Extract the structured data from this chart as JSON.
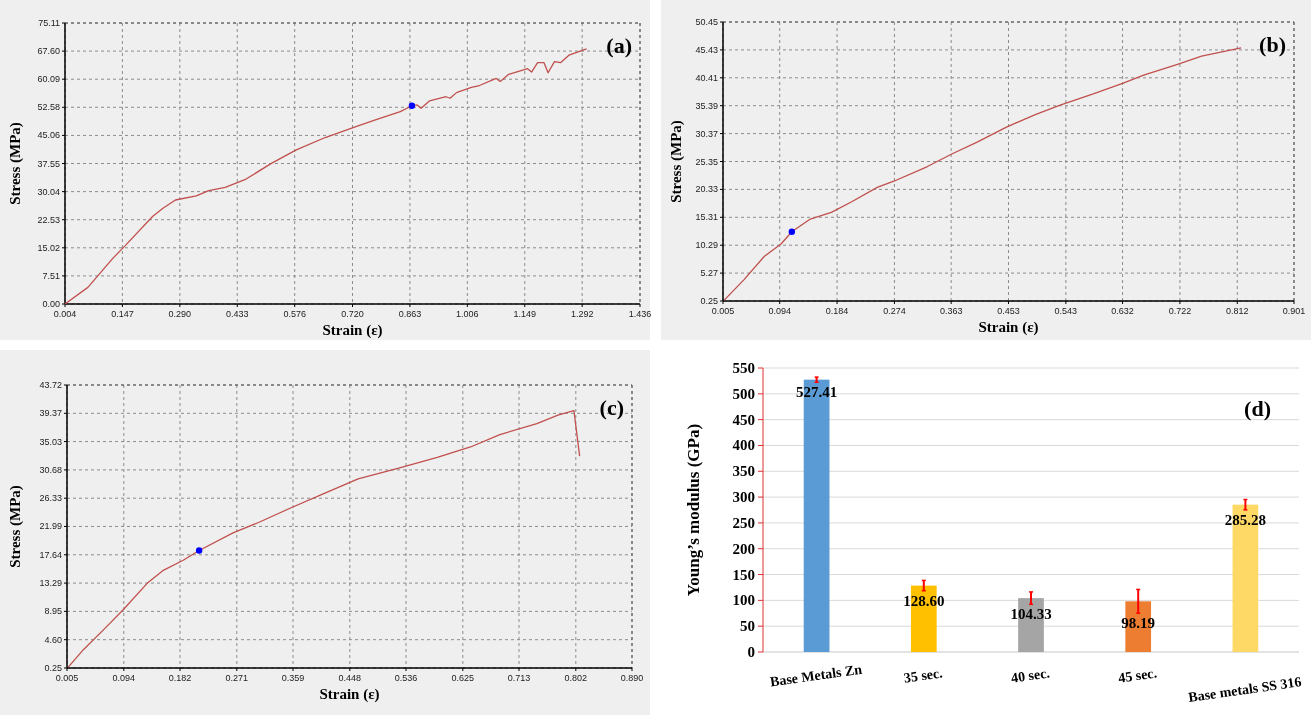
{
  "chart_data": [
    {
      "type": "line",
      "xlabel": "Strain (ε)",
      "ylabel": "Stress (MPa)",
      "annotations": [
        "(a)"
      ],
      "grid": true,
      "xlim": [
        0.004,
        1.436
      ],
      "ylim": [
        0,
        75.11
      ],
      "xticks": [
        0.004,
        0.147,
        {
          "value": 0.29,
          "label": "0.290"
        },
        0.433,
        0.576,
        {
          "value": 0.72,
          "label": "0.720"
        },
        0.863,
        1.006,
        1.149,
        1.292,
        1.436
      ],
      "yticks": [
        {
          "value": 0,
          "label": "0.00"
        },
        7.51,
        15.02,
        22.53,
        30.04,
        37.55,
        45.06,
        52.58,
        60.09,
        {
          "value": 67.6,
          "label": "67.60"
        },
        75.11
      ],
      "series": [
        {
          "type": "line",
          "color": "#c0504d",
          "x": [
            0.004,
            0.061,
            0.123,
            0.154,
            0.222,
            0.248,
            0.279,
            0.331,
            0.362,
            0.403,
            0.455,
            0.518,
            0.58,
            0.652,
            0.725,
            0.777,
            0.839,
            0.868,
            0.881,
            0.891,
            0.912,
            0.953,
            0.963,
            0.979,
            1.016,
            1.036,
            1.078,
            1.088,
            1.109,
            1.156,
            1.166,
            1.181,
            1.197,
            1.207,
            1.223,
            1.238,
            1.259,
            1.303
          ],
          "values": [
            0,
            4.45,
            12.2,
            15.6,
            23.4,
            25.6,
            27.8,
            28.9,
            30.3,
            31.2,
            33.4,
            37.6,
            41.2,
            44.5,
            47.3,
            49.2,
            51.4,
            53.0,
            53.2,
            52.3,
            54.3,
            55.4,
            55.0,
            56.5,
            57.9,
            58.4,
            60.3,
            59.5,
            61.4,
            62.9,
            62.0,
            64.5,
            64.5,
            61.8,
            64.8,
            64.5,
            66.5,
            68.2
          ]
        },
        {
          "type": "scatter",
          "color": "#0000ff",
          "marker": "circle",
          "x": [
            0.868
          ],
          "values": [
            53.0
          ]
        }
      ]
    },
    {
      "type": "line",
      "xlabel": "Strain (ε)",
      "ylabel": "Stress (MPa)",
      "annotations": [
        "(b)"
      ],
      "grid": true,
      "xlim": [
        0.005,
        0.901
      ],
      "ylim": [
        0.25,
        50.45
      ],
      "xticks": [
        0.005,
        0.094,
        0.184,
        0.274,
        0.363,
        0.453,
        0.543,
        0.632,
        0.722,
        0.812,
        0.901
      ],
      "yticks": [
        0.25,
        5.27,
        10.29,
        15.31,
        20.33,
        25.35,
        30.37,
        35.39,
        40.41,
        45.43,
        50.45
      ],
      "series": [
        {
          "type": "line",
          "color": "#c0504d",
          "x": [
            0.007,
            0.038,
            0.07,
            0.096,
            0.113,
            0.142,
            0.175,
            0.207,
            0.247,
            0.273,
            0.325,
            0.364,
            0.403,
            0.449,
            0.495,
            0.534,
            0.586,
            0.632,
            0.665,
            0.717,
            0.756,
            0.818
          ],
          "values": [
            0.4,
            4.1,
            8.3,
            10.5,
            12.7,
            15.0,
            16.2,
            18.1,
            20.7,
            21.8,
            24.4,
            26.7,
            28.8,
            31.5,
            33.8,
            35.5,
            37.5,
            39.4,
            40.9,
            42.8,
            44.3,
            45.8
          ]
        },
        {
          "type": "scatter",
          "color": "#0000ff",
          "marker": "circle",
          "x": [
            0.113
          ],
          "values": [
            12.7
          ]
        }
      ]
    },
    {
      "type": "line",
      "xlabel": "Strain (ε)",
      "ylabel": "Stress (MPa)",
      "annotations": [
        "(c)"
      ],
      "grid": true,
      "xlim": [
        0.005,
        0.89
      ],
      "ylim": [
        0.25,
        43.72
      ],
      "xticks": [
        0.005,
        0.094,
        0.182,
        0.271,
        0.359,
        0.448,
        0.536,
        0.625,
        0.713,
        0.802,
        {
          "value": 0.89,
          "label": "0.890"
        }
      ],
      "yticks": [
        0.25,
        {
          "value": 4.6,
          "label": "4.60"
        },
        8.95,
        13.29,
        17.64,
        21.99,
        26.33,
        30.68,
        35.03,
        39.37,
        43.72
      ],
      "series": [
        {
          "type": "line",
          "color": "#c0504d",
          "x": [
            0.007,
            0.031,
            0.064,
            0.093,
            0.132,
            0.155,
            0.187,
            0.212,
            0.265,
            0.305,
            0.357,
            0.409,
            0.461,
            0.526,
            0.585,
            0.637,
            0.683,
            0.741,
            0.774,
            0.799,
            0.808
          ],
          "values": [
            0.38,
            3.1,
            6.3,
            9.2,
            13.4,
            15.2,
            16.8,
            18.3,
            21.0,
            22.6,
            24.9,
            27.1,
            29.3,
            31.0,
            32.6,
            34.2,
            36.1,
            37.8,
            39.1,
            39.8,
            32.8
          ]
        },
        {
          "type": "scatter",
          "color": "#0000ff",
          "marker": "circle",
          "x": [
            0.212
          ],
          "values": [
            18.3
          ]
        }
      ]
    },
    {
      "type": "bar",
      "ylabel": "Young’s modulus (GPa)",
      "annotations": [
        "(d)"
      ],
      "grid": "y",
      "value_labels": [
        "527.41",
        "128.60",
        "104.33",
        "98.19",
        "285.28"
      ],
      "categories": [
        "Base Metals Zn",
        "35 sec.",
        "40 sec.",
        "45 sec.",
        "Base metals SS 316"
      ],
      "values": [
        527.41,
        128.6,
        104.33,
        98.19,
        285.28
      ],
      "colors": [
        "#5b9bd5",
        "#ffc000",
        "#a5a5a5",
        "#ed7d31",
        "#ffd966"
      ],
      "errors": [
        5,
        10,
        12,
        23,
        10
      ],
      "ylim": [
        0,
        550
      ],
      "yticks": [
        0,
        50,
        100,
        150,
        200,
        250,
        300,
        350,
        400,
        450,
        500,
        550
      ]
    }
  ]
}
